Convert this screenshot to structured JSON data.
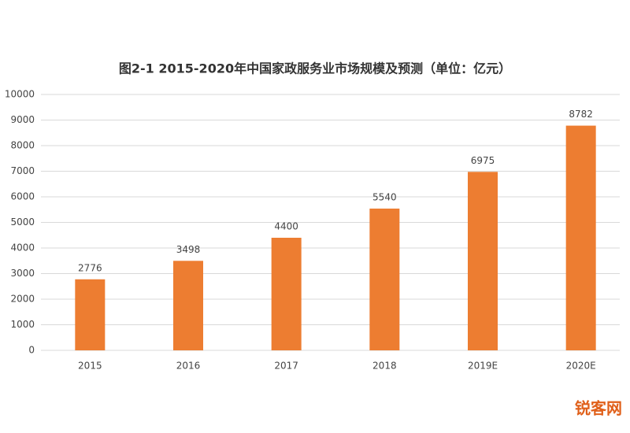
{
  "chart_data": {
    "type": "bar",
    "title": "图2-1 2015-2020年中国家政服务业市场规模及预测（单位：亿元）",
    "categories": [
      "2015",
      "2016",
      "2017",
      "2018",
      "2019E",
      "2020E"
    ],
    "values": [
      2776,
      3498,
      4400,
      5540,
      6975,
      8782
    ],
    "color": "#ed7d31",
    "ylim": [
      0,
      10000
    ],
    "yticks": [
      0,
      1000,
      2000,
      3000,
      4000,
      5000,
      6000,
      7000,
      8000,
      9000,
      10000
    ],
    "grid": true
  },
  "watermark": "锐客网"
}
